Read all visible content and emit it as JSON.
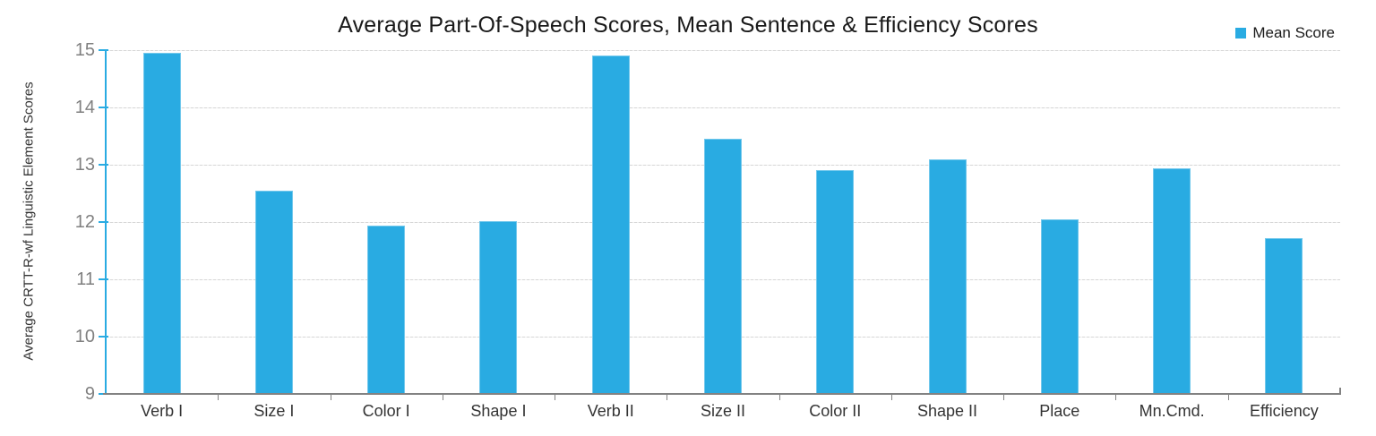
{
  "chart_data": {
    "type": "bar",
    "title": "Average Part-Of-Speech Scores, Mean Sentence & Efficiency Scores",
    "xlabel": "",
    "ylabel": "Average CRTT-R-wf Linguistic Element Scores",
    "categories": [
      "Verb I",
      "Size I",
      "Color I",
      "Shape I",
      "Verb II",
      "Size II",
      "Color II",
      "Shape II",
      "Place",
      "Mn.Cmd.",
      "Efficiency"
    ],
    "series": [
      {
        "name": "Mean Score",
        "color": "#29abe2",
        "values": [
          14.95,
          12.55,
          11.93,
          12.02,
          14.9,
          13.45,
          12.9,
          13.1,
          12.05,
          12.93,
          11.72
        ]
      }
    ],
    "ylim": [
      9,
      15
    ],
    "yticks": [
      9,
      10,
      11,
      12,
      13,
      14,
      15
    ],
    "grid": true,
    "legend_position": "top-right",
    "colors": {
      "bar": "#29abe2",
      "y_axis_line": "#29abe2",
      "x_axis_line": "#828282",
      "gridline": "#d9d9d9",
      "y_tick_text": "#808080",
      "x_tick_text": "#333333",
      "title_text": "#1a1a1a"
    }
  }
}
